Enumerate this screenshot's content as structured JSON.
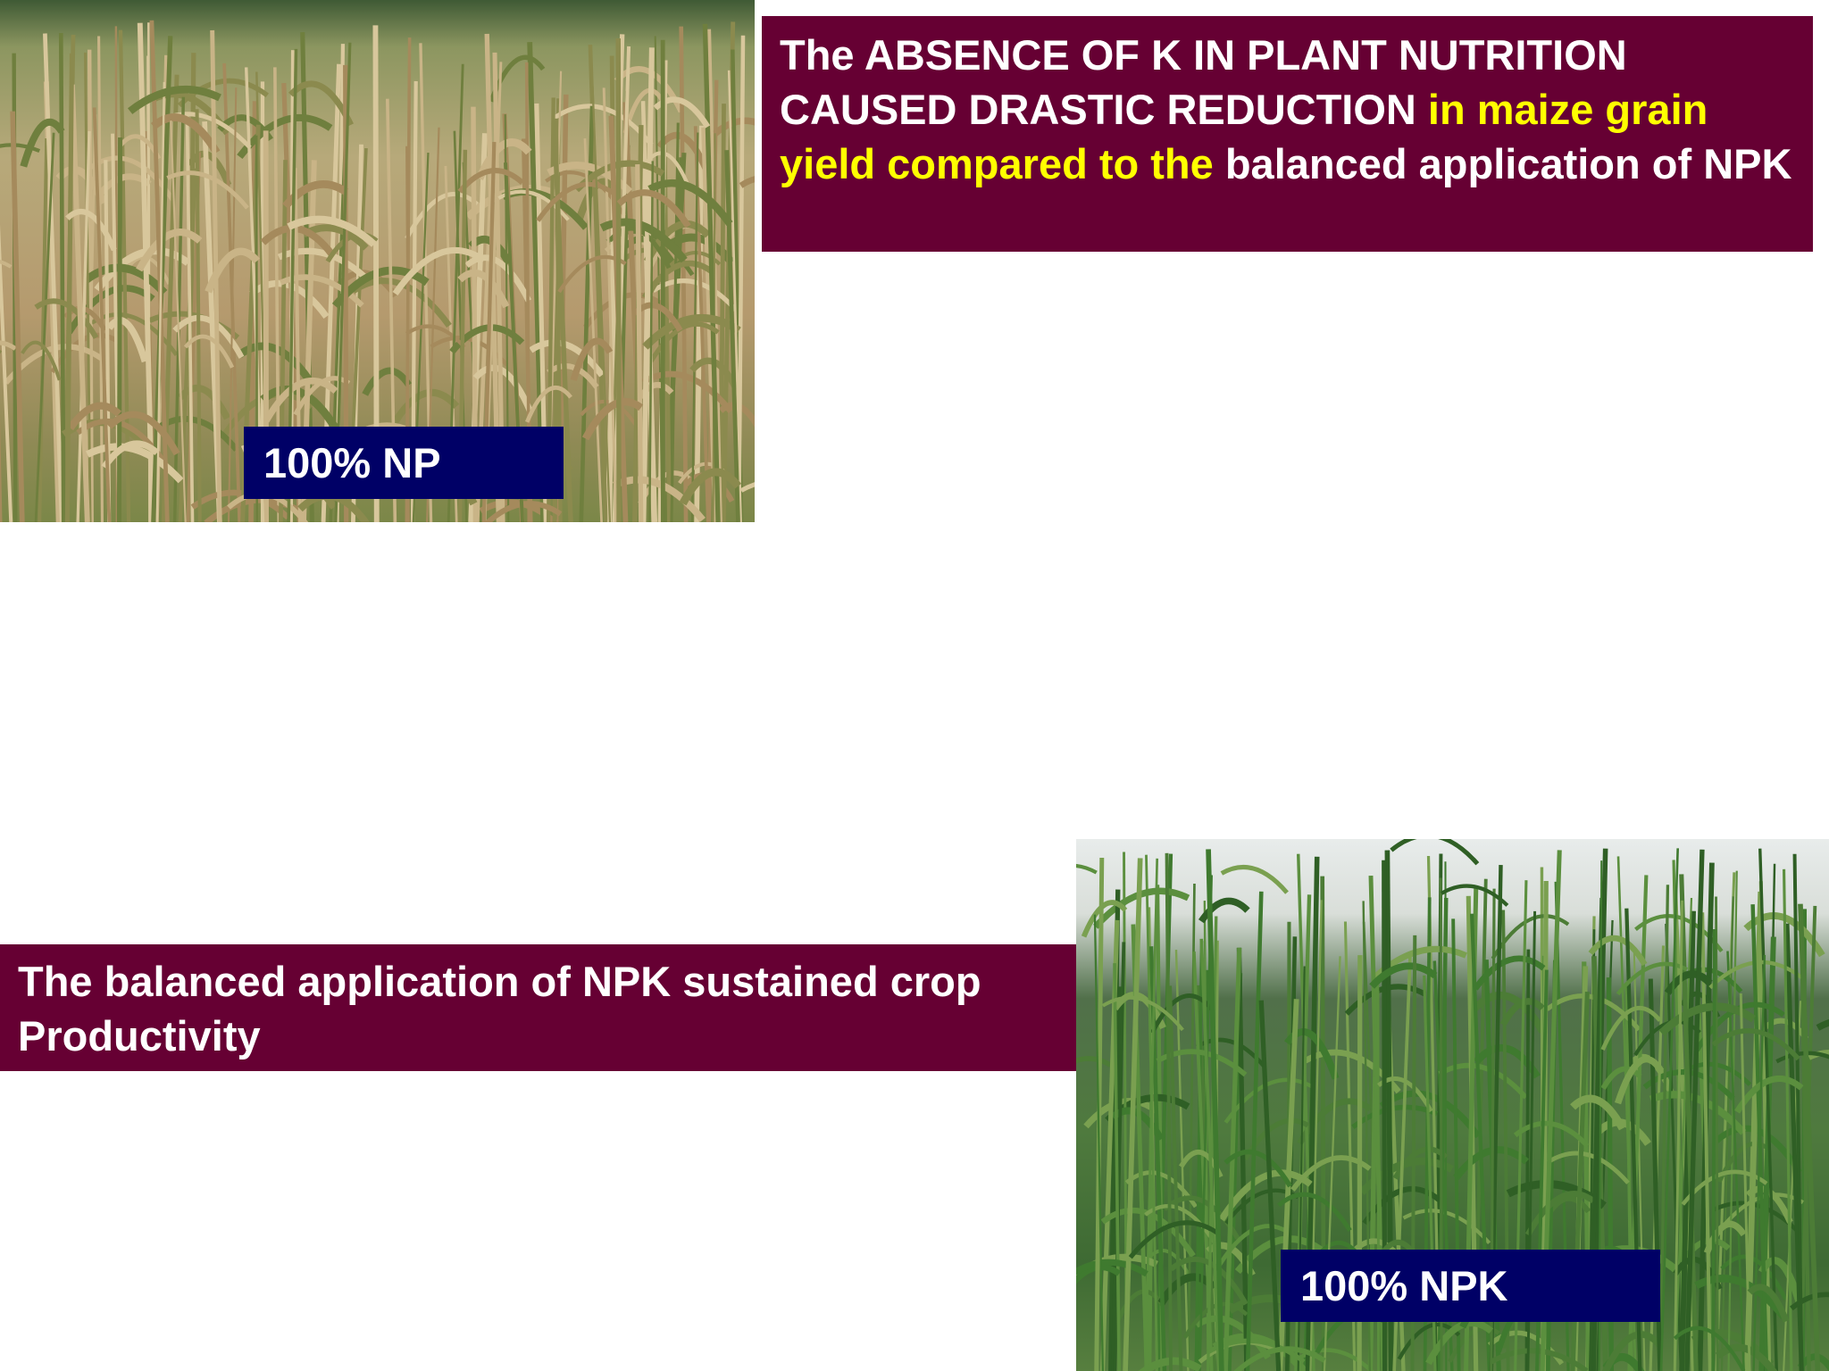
{
  "top_panel": {
    "photo_label": "100% NP",
    "caption_segments": [
      "The ABSENCE OF K IN PLANT NUTRITION CAUSED DRASTIC REDUCTION",
      "in maize grain yield compared to the",
      "balanced application of NPK"
    ]
  },
  "bottom_panel": {
    "caption": "The balanced application of NPK sustained crop Productivity",
    "photo_label": "100% NPK"
  }
}
